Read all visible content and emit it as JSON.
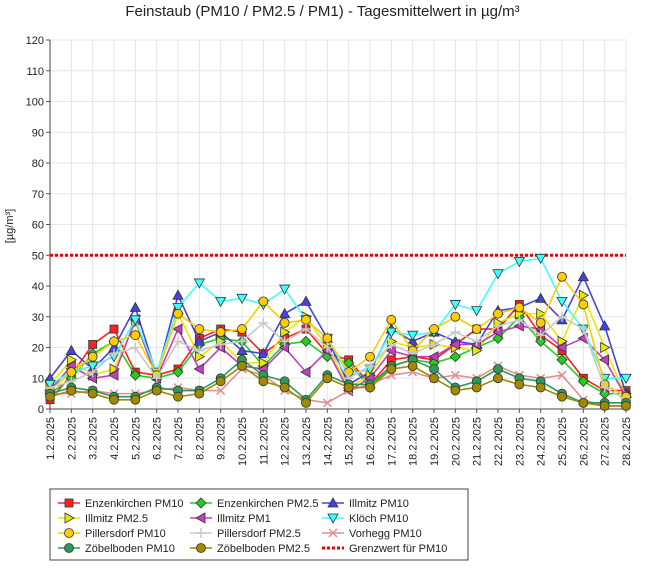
{
  "chart_data": {
    "type": "line",
    "title": "Feinstaub (PM10 / PM2.5 / PM1) -  Tagesmittelwert in µg/m³",
    "ylabel": "[µg/m³]",
    "xlabel": "",
    "ylim": [
      0,
      120
    ],
    "yticks": [
      0,
      10,
      20,
      30,
      40,
      50,
      60,
      70,
      80,
      90,
      100,
      110,
      120
    ],
    "grid": true,
    "legend_position": "bottom",
    "categories": [
      "1.2.2025",
      "2.2.2025",
      "3.2.2025",
      "4.2.2025",
      "5.2.2025",
      "6.2.2025",
      "7.2.2025",
      "8.2.2025",
      "9.2.2025",
      "10.2.2025",
      "11.2.2025",
      "12.2.2025",
      "13.2.2025",
      "14.2.2025",
      "15.2.2025",
      "16.2.2025",
      "17.2.2025",
      "18.2.2025",
      "19.2.2025",
      "20.2.2025",
      "21.2.2025",
      "22.2.2025",
      "23.2.2025",
      "24.2.2025",
      "25.2.2025",
      "26.2.2025",
      "27.2.2025",
      "28.2.2025"
    ],
    "series": [
      {
        "name": "Enzenkirchen PM10",
        "color": "#ff2020",
        "marker": "square",
        "values": [
          3,
          11,
          21,
          26,
          12,
          11,
          13,
          23,
          26,
          25,
          18,
          23,
          26,
          18,
          16,
          8,
          16,
          17,
          16,
          21,
          26,
          26,
          34,
          24,
          19,
          10,
          6,
          6
        ]
      },
      {
        "name": "Enzenkirchen PM2.5",
        "color": "#20d020",
        "marker": "diamond",
        "values": [
          5,
          10,
          18,
          22,
          11,
          10,
          12,
          21,
          23,
          22,
          14,
          21,
          22,
          17,
          15,
          7,
          14,
          16,
          15,
          17,
          20,
          23,
          30,
          22,
          16,
          9,
          5,
          5
        ]
      },
      {
        "name": "Illmitz PM10",
        "color": "#4444dd",
        "marker": "triangle-up",
        "values": [
          10,
          19,
          13,
          20,
          33,
          11,
          37,
          22,
          25,
          19,
          18,
          31,
          35,
          23,
          8,
          12,
          26,
          22,
          25,
          22,
          21,
          32,
          33,
          36,
          29,
          43,
          27,
          5
        ]
      },
      {
        "name": "Illmitz PM2.5",
        "color": "#e8e800",
        "marker": "triangle-right",
        "values": [
          8,
          16,
          11,
          13,
          28,
          11,
          31,
          17,
          22,
          15,
          15,
          25,
          30,
          20,
          7,
          11,
          22,
          20,
          21,
          20,
          19,
          28,
          31,
          31,
          22,
          37,
          20,
          4
        ]
      },
      {
        "name": "Illmitz PM1",
        "color": "#c040c0",
        "marker": "triangle-left",
        "values": [
          6,
          14,
          10,
          11,
          29,
          10,
          26,
          13,
          20,
          14,
          13,
          20,
          12,
          19,
          6,
          10,
          19,
          17,
          17,
          21,
          21,
          25,
          27,
          26,
          20,
          23,
          16,
          4
        ]
      },
      {
        "name": "Klöch PM10",
        "color": "#40ffff",
        "marker": "triangle-down",
        "values": [
          8,
          12,
          14,
          17,
          29,
          12,
          33,
          41,
          35,
          36,
          34,
          39,
          29,
          23,
          11,
          13,
          25,
          24,
          25,
          34,
          32,
          44,
          48,
          49,
          35,
          26,
          10,
          10
        ]
      },
      {
        "name": "Pillersdorf PM10",
        "color": "#ffcc00",
        "marker": "circle",
        "values": [
          6,
          12,
          17,
          22,
          24,
          11,
          31,
          26,
          25,
          26,
          35,
          28,
          29,
          23,
          12,
          17,
          29,
          19,
          26,
          30,
          26,
          31,
          33,
          28,
          43,
          34,
          8,
          4
        ]
      },
      {
        "name": "Pillersdorf PM2.5",
        "color": "#c8c8c8",
        "marker": "plus",
        "values": [
          7,
          9,
          12,
          18,
          20,
          10,
          22,
          19,
          21,
          22,
          28,
          22,
          26,
          20,
          10,
          14,
          21,
          18,
          21,
          25,
          22,
          27,
          29,
          24,
          30,
          26,
          7,
          3
        ]
      },
      {
        "name": "Vorhegg PM10",
        "color": "#e09090",
        "marker": "x",
        "values": [
          5,
          5,
          6,
          5,
          5,
          6,
          7,
          6,
          6,
          13,
          11,
          6,
          3,
          2,
          6,
          8,
          11,
          12,
          10,
          11,
          10,
          14,
          11,
          10,
          11,
          3,
          1,
          1
        ]
      },
      {
        "name": "Zöbelboden PM10",
        "color": "#2e9a5a",
        "marker": "circle",
        "values": [
          5,
          7,
          6,
          4,
          4,
          7,
          6,
          6,
          10,
          16,
          11,
          9,
          3,
          11,
          8,
          8,
          14,
          16,
          13,
          7,
          9,
          13,
          10,
          9,
          5,
          2,
          2,
          2
        ]
      },
      {
        "name": "Zöbelboden PM2.5",
        "color": "#a08a00",
        "marker": "circle",
        "values": [
          4,
          6,
          5,
          3,
          3,
          6,
          4,
          5,
          9,
          14,
          9,
          7,
          2,
          10,
          7,
          7,
          13,
          14,
          10,
          6,
          7,
          10,
          8,
          7,
          4,
          2,
          1,
          1
        ]
      }
    ],
    "threshold": {
      "name": "Grenzwert für PM10",
      "value": 50,
      "color": "#ee0000"
    }
  }
}
